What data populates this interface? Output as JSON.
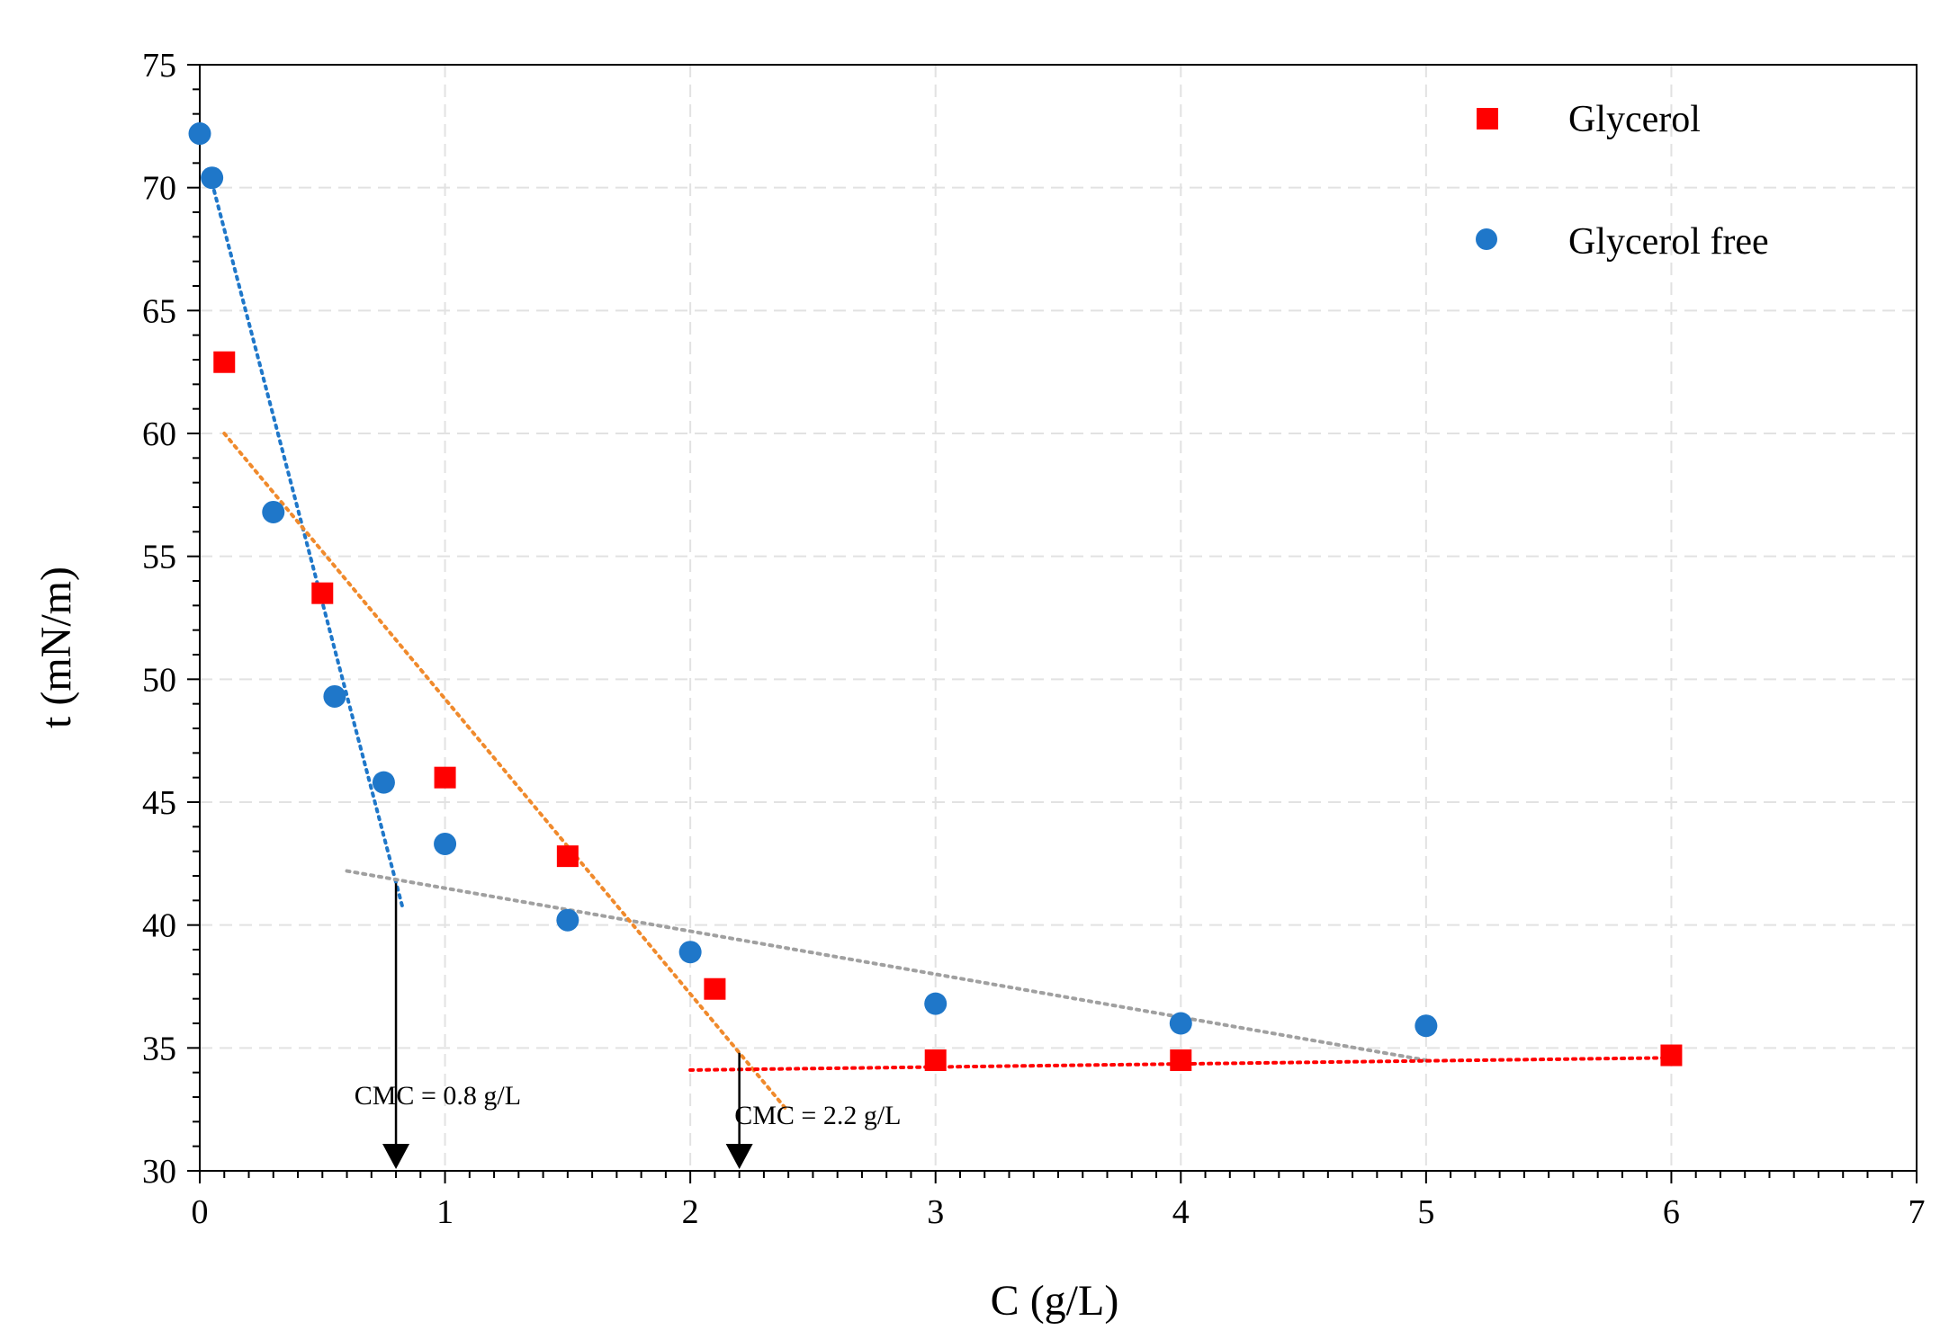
{
  "chart_data": {
    "type": "scatter",
    "xlabel": "C (g/L)",
    "ylabel": "t (mN/m)",
    "xlim": [
      0,
      7
    ],
    "ylim": [
      30,
      75
    ],
    "xticks": [
      0,
      1,
      2,
      3,
      4,
      5,
      6,
      7
    ],
    "yticks": [
      30,
      35,
      40,
      45,
      50,
      55,
      60,
      65,
      70,
      75
    ],
    "grid": true,
    "legend_position": "top-right",
    "series": [
      {
        "name": "Glycerol",
        "marker": "square",
        "color": "#ff0000",
        "points": [
          {
            "x": 0.1,
            "y": 62.9
          },
          {
            "x": 0.5,
            "y": 53.5
          },
          {
            "x": 1.0,
            "y": 46.0
          },
          {
            "x": 1.5,
            "y": 42.8
          },
          {
            "x": 2.1,
            "y": 37.4
          },
          {
            "x": 3.0,
            "y": 34.5
          },
          {
            "x": 4.0,
            "y": 34.5
          },
          {
            "x": 6.0,
            "y": 34.7
          }
        ]
      },
      {
        "name": "Glycerol free",
        "marker": "circle",
        "color": "#1f77c9",
        "points": [
          {
            "x": 0.0,
            "y": 72.2
          },
          {
            "x": 0.05,
            "y": 70.4
          },
          {
            "x": 0.3,
            "y": 56.8
          },
          {
            "x": 0.55,
            "y": 49.3
          },
          {
            "x": 0.75,
            "y": 45.8
          },
          {
            "x": 1.0,
            "y": 43.3
          },
          {
            "x": 1.5,
            "y": 40.2
          },
          {
            "x": 2.0,
            "y": 38.9
          },
          {
            "x": 3.0,
            "y": 36.8
          },
          {
            "x": 4.0,
            "y": 36.0
          },
          {
            "x": 5.0,
            "y": 35.9
          }
        ]
      }
    ],
    "trendlines": [
      {
        "name": "glycerol-free-steep",
        "color": "#1f77c9",
        "from": [
          0.05,
          70.2
        ],
        "to": [
          0.83,
          40.6
        ]
      },
      {
        "name": "glycerol-free-plateau",
        "color": "#a0a0a0",
        "from": [
          0.6,
          42.2
        ],
        "to": [
          5.0,
          34.5
        ]
      },
      {
        "name": "glycerol-steep",
        "color": "#f08a2c",
        "from": [
          0.1,
          60.0
        ],
        "to": [
          2.4,
          32.4
        ]
      },
      {
        "name": "glycerol-plateau",
        "color": "#ff0000",
        "from": [
          2.0,
          34.1
        ],
        "to": [
          6.0,
          34.6
        ]
      }
    ],
    "annotations": [
      {
        "text": "CMC = 0.8 g/L",
        "arrow_x": 0.8,
        "arrow_from_y": 41.7,
        "label_x": 0.97,
        "label_y": 32.7
      },
      {
        "text": "CMC = 2.2 g/L",
        "arrow_x": 2.2,
        "arrow_from_y": 34.8,
        "label_x": 2.52,
        "label_y": 31.9
      }
    ]
  }
}
